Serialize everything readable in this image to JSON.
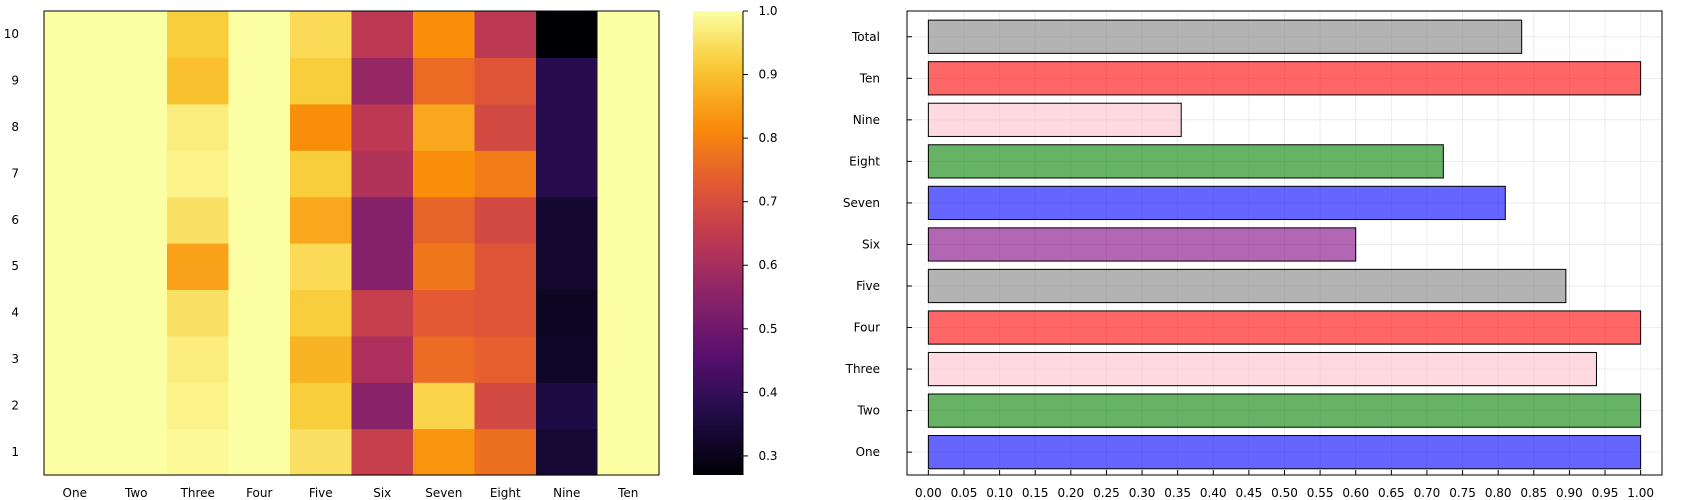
{
  "chart_data": [
    {
      "type": "heatmap",
      "title": "",
      "x_categories": [
        "One",
        "Two",
        "Three",
        "Four",
        "Five",
        "Six",
        "Seven",
        "Eight",
        "Nine",
        "Ten"
      ],
      "y_categories": [
        "1",
        "2",
        "3",
        "4",
        "5",
        "6",
        "7",
        "8",
        "9",
        "10"
      ],
      "values": [
        [
          1.0,
          1.0,
          0.99,
          1.0,
          0.95,
          0.66,
          0.83,
          0.77,
          0.34,
          1.0
        ],
        [
          1.0,
          1.0,
          0.98,
          1.0,
          0.92,
          0.55,
          0.93,
          0.69,
          0.36,
          1.0
        ],
        [
          1.0,
          1.0,
          0.97,
          1.0,
          0.88,
          0.61,
          0.76,
          0.74,
          0.32,
          1.0
        ],
        [
          1.0,
          1.0,
          0.95,
          1.0,
          0.92,
          0.66,
          0.73,
          0.72,
          0.31,
          1.0
        ],
        [
          1.0,
          1.0,
          0.85,
          1.0,
          0.94,
          0.54,
          0.78,
          0.72,
          0.33,
          1.0
        ],
        [
          1.0,
          1.0,
          0.95,
          1.0,
          0.86,
          0.54,
          0.75,
          0.69,
          0.33,
          1.0
        ],
        [
          1.0,
          1.0,
          0.98,
          1.0,
          0.92,
          0.62,
          0.82,
          0.79,
          0.38,
          1.0
        ],
        [
          1.0,
          1.0,
          0.97,
          1.0,
          0.82,
          0.64,
          0.86,
          0.69,
          0.38,
          1.0
        ],
        [
          1.0,
          1.0,
          0.9,
          1.0,
          0.92,
          0.57,
          0.76,
          0.72,
          0.38,
          1.0
        ],
        [
          1.0,
          1.0,
          0.92,
          1.0,
          0.94,
          0.64,
          0.82,
          0.64,
          0.27,
          1.0
        ]
      ],
      "colorbar": {
        "min": 0.27,
        "max": 1.0,
        "ticks": [
          "0.3",
          "0.4",
          "0.5",
          "0.6",
          "0.7",
          "0.8",
          "0.9",
          "1.0"
        ],
        "tick_values": [
          0.3,
          0.4,
          0.5,
          0.6,
          0.7,
          0.8,
          0.9,
          1.0
        ]
      },
      "colormap": "inferno"
    },
    {
      "type": "bar",
      "orientation": "horizontal",
      "title": "",
      "xlabel": "",
      "ylabel": "",
      "categories": [
        "One",
        "Two",
        "Three",
        "Four",
        "Five",
        "Six",
        "Seven",
        "Eight",
        "Nine",
        "Ten",
        "Total"
      ],
      "values": [
        1.0,
        1.0,
        0.938,
        1.0,
        0.895,
        0.6,
        0.81,
        0.723,
        0.355,
        1.0,
        0.833
      ],
      "colors": [
        "#0000ff",
        "#008000",
        "#ffc0cb",
        "#ff0000",
        "#808080",
        "#800080",
        "#0000ff",
        "#008000",
        "#ffc0cb",
        "#ff0000",
        "#808080"
      ],
      "xlim": [
        -0.03,
        1.03
      ],
      "xticks": [
        "0.00",
        "0.05",
        "0.10",
        "0.15",
        "0.20",
        "0.25",
        "0.30",
        "0.35",
        "0.40",
        "0.45",
        "0.50",
        "0.55",
        "0.60",
        "0.65",
        "0.70",
        "0.75",
        "0.80",
        "0.85",
        "0.90",
        "0.95",
        "1.00"
      ],
      "grid": true
    }
  ]
}
